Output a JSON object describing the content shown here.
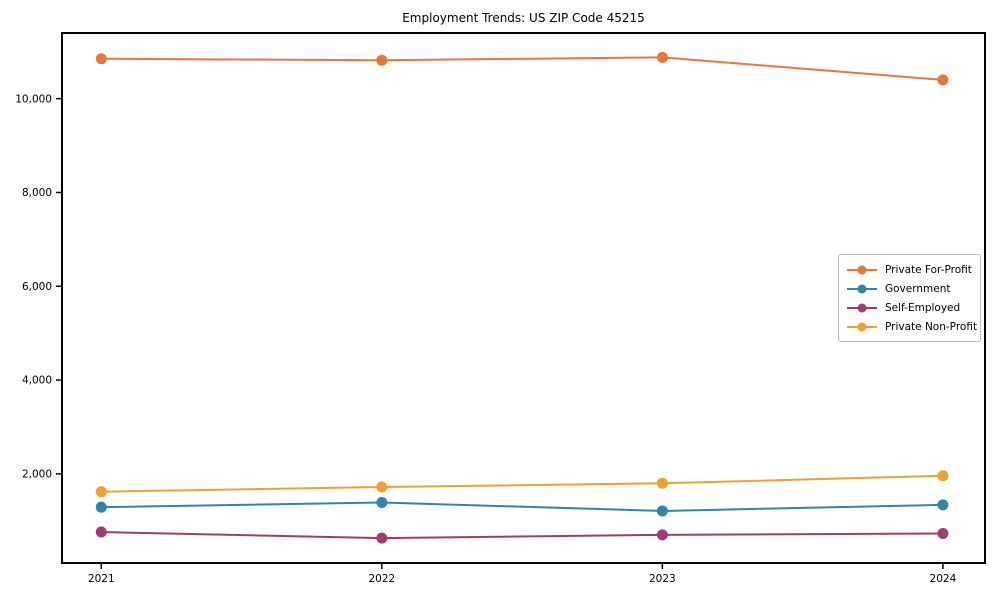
{
  "chart": {
    "title": "Employment Trends: US ZIP Code 45215"
  },
  "chart_data": {
    "type": "line",
    "title": "Employment Trends: US ZIP Code 45215",
    "xlabel": "",
    "ylabel": "",
    "x": [
      2021,
      2022,
      2023,
      2024
    ],
    "xtick_labels": [
      "2021",
      "2022",
      "2023",
      "2024"
    ],
    "series": [
      {
        "name": "Private For-Profit",
        "color": "#E8763B",
        "values": [
          10850,
          10820,
          10880,
          10400
        ]
      },
      {
        "name": "Government",
        "color": "#2E86A8",
        "values": [
          1290,
          1390,
          1210,
          1340
        ]
      },
      {
        "name": "Self-Employed",
        "color": "#A23B72",
        "values": [
          760,
          630,
          700,
          730
        ]
      },
      {
        "name": "Private Non-Profit",
        "color": "#F0A030",
        "values": [
          1620,
          1720,
          1800,
          1960
        ]
      }
    ],
    "yticks": [
      2000,
      4000,
      6000,
      8000,
      10000
    ],
    "ytick_labels": [
      "2,000",
      "4,000",
      "6,000",
      "8,000",
      "10,000"
    ],
    "ylim": [
      100,
      11400
    ],
    "xlim": [
      2020.86,
      2024.15
    ],
    "grid": false,
    "legend_position": "center-right",
    "marker": "circle",
    "line_width": 2,
    "marker_radius": 5.5,
    "axis_color": "#000000",
    "background": "#ffffff"
  }
}
